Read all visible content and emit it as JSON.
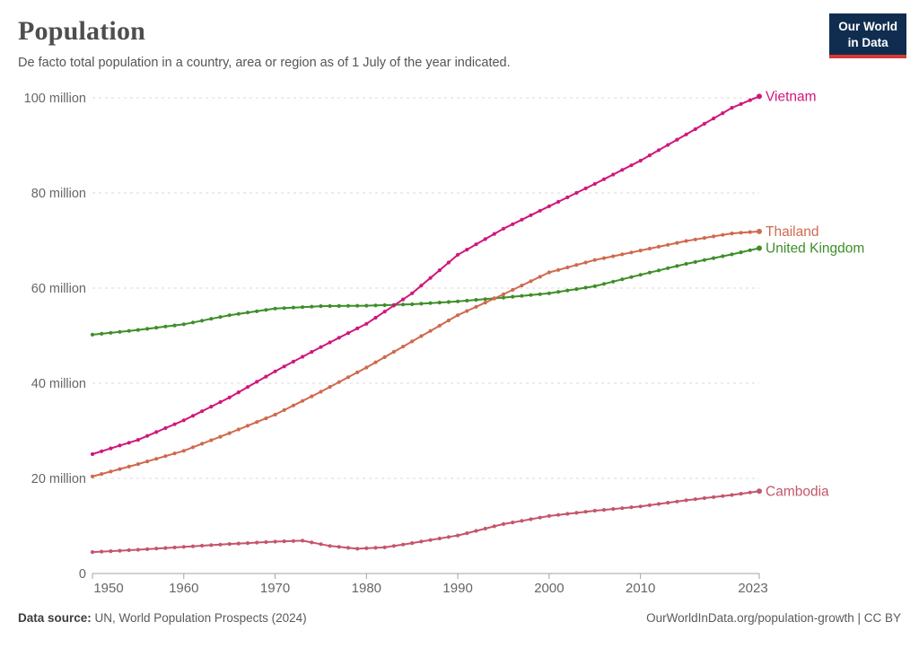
{
  "header": {
    "title": "Population",
    "subtitle": "De facto total population in a country, area or region as of 1 July of the year indicated.",
    "logo": {
      "line1": "Our World",
      "line2": "in Data",
      "bg_color": "#102d50",
      "accent_color": "#d73a34"
    }
  },
  "chart_data": {
    "type": "line",
    "title": "Population",
    "xlabel": "",
    "ylabel": "",
    "unit": "million people",
    "grid": true,
    "legend_position": "right-end-labels",
    "x_range": [
      1950,
      2023
    ],
    "ylim": [
      0,
      100
    ],
    "x_ticks": [
      1950,
      1960,
      1970,
      1980,
      1990,
      2000,
      2010,
      2023
    ],
    "y_ticks": [
      {
        "value": 0,
        "label": "0"
      },
      {
        "value": 20,
        "label": "20 million"
      },
      {
        "value": 40,
        "label": "40 million"
      },
      {
        "value": 60,
        "label": "60 million"
      },
      {
        "value": 80,
        "label": "80 million"
      },
      {
        "value": 100,
        "label": "100 million"
      }
    ],
    "series": [
      {
        "name": "Cambodia",
        "color": "#c4566b",
        "years": [
          1950,
          1955,
          1960,
          1965,
          1970,
          1973,
          1976,
          1979,
          1982,
          1985,
          1990,
          1995,
          2000,
          2005,
          2010,
          2015,
          2020,
          2023
        ],
        "values": [
          4.5,
          5.0,
          5.6,
          6.2,
          6.7,
          6.9,
          5.8,
          5.2,
          5.5,
          6.4,
          8.0,
          10.4,
          12.1,
          13.2,
          14.1,
          15.4,
          16.5,
          17.3
        ]
      },
      {
        "name": "United Kingdom",
        "color": "#3e8e29",
        "years": [
          1950,
          1955,
          1960,
          1965,
          1970,
          1975,
          1980,
          1985,
          1990,
          1995,
          2000,
          2005,
          2010,
          2015,
          2020,
          2023
        ],
        "values": [
          50.2,
          51.2,
          52.4,
          54.3,
          55.7,
          56.2,
          56.3,
          56.6,
          57.2,
          58.0,
          58.9,
          60.4,
          62.8,
          65.1,
          67.1,
          68.4
        ]
      },
      {
        "name": "Thailand",
        "color": "#cf6a4e",
        "years": [
          1950,
          1955,
          1960,
          1965,
          1970,
          1975,
          1980,
          1985,
          1990,
          1995,
          2000,
          2005,
          2010,
          2015,
          2020,
          2023
        ],
        "values": [
          20.4,
          23.0,
          25.8,
          29.5,
          33.4,
          38.2,
          43.3,
          48.8,
          54.3,
          58.7,
          63.3,
          65.9,
          67.9,
          69.9,
          71.5,
          71.9
        ]
      },
      {
        "name": "Vietnam",
        "color": "#d0177c",
        "years": [
          1950,
          1955,
          1960,
          1965,
          1970,
          1975,
          1980,
          1985,
          1990,
          1995,
          2000,
          2005,
          2010,
          2015,
          2020,
          2023
        ],
        "values": [
          25.1,
          28.1,
          32.2,
          37.0,
          42.5,
          47.6,
          52.5,
          58.9,
          67.0,
          72.5,
          77.2,
          81.9,
          86.8,
          92.3,
          97.9,
          100.3
        ]
      }
    ]
  },
  "footer": {
    "source_label": "Data source:",
    "source_text": " UN, World Population Prospects (2024)",
    "link_text": "OurWorldInData.org/population-growth | CC BY"
  }
}
